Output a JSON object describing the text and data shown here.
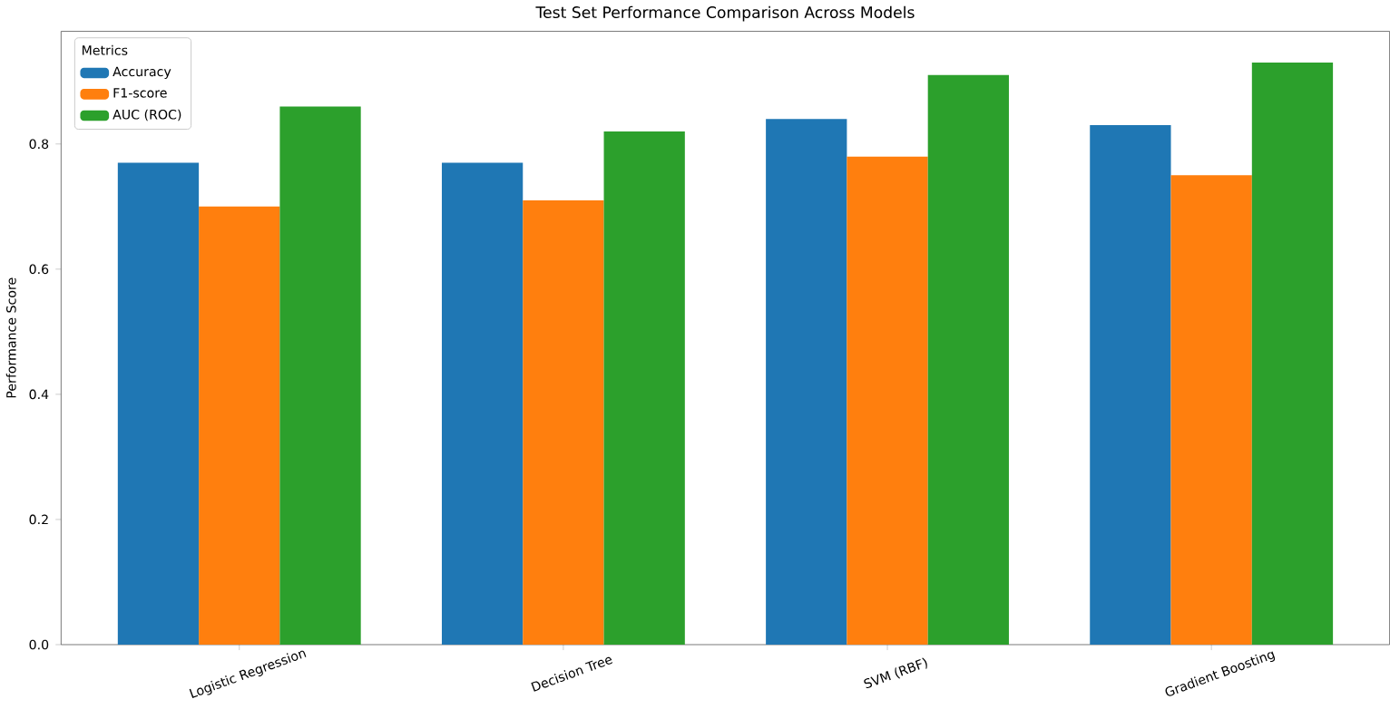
{
  "chart_data": {
    "type": "bar",
    "title": "Test Set Performance Comparison Across Models",
    "ylabel": "Performance Score",
    "legend_title": "Metrics",
    "legend": "top left",
    "categories": [
      "Logistic Regression",
      "Decision Tree",
      "SVM (RBF)",
      "Gradient Boosting"
    ],
    "series": [
      {
        "name": "Accuracy",
        "color": "#1f77b4",
        "values": [
          0.77,
          0.77,
          0.84,
          0.83
        ]
      },
      {
        "name": "F1-score",
        "color": "#ff7f0e",
        "values": [
          0.7,
          0.71,
          0.78,
          0.75
        ]
      },
      {
        "name": "AUC (ROC)",
        "color": "#2ca02c",
        "values": [
          0.86,
          0.82,
          0.91,
          0.93
        ]
      }
    ],
    "ylim": [
      0,
      0.98
    ],
    "yticks": [
      {
        "value": 0,
        "label": "0.0"
      },
      {
        "value": 0.2,
        "label": "0.2"
      },
      {
        "value": 0.4,
        "label": "0.4"
      },
      {
        "value": 0.6,
        "label": "0.6"
      },
      {
        "value": 0.8,
        "label": "0.8"
      }
    ],
    "grid": false
  }
}
